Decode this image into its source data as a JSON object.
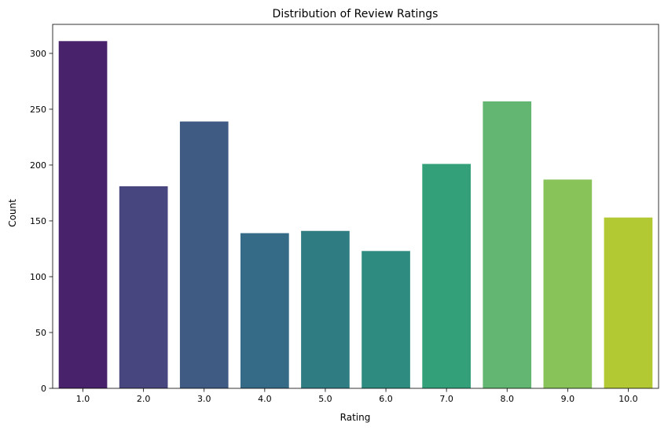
{
  "chart_data": {
    "type": "bar",
    "title": "Distribution of Review Ratings",
    "xlabel": "Rating",
    "ylabel": "Count",
    "categories": [
      "1.0",
      "2.0",
      "3.0",
      "4.0",
      "5.0",
      "6.0",
      "7.0",
      "8.0",
      "9.0",
      "10.0"
    ],
    "values": [
      311,
      181,
      239,
      139,
      141,
      123,
      201,
      257,
      187,
      153
    ],
    "colors": [
      "#48226b",
      "#47467f",
      "#3f5b83",
      "#366b87",
      "#2f7c83",
      "#2e8b7f",
      "#34a07a",
      "#62b672",
      "#88c359",
      "#b2c934"
    ],
    "ylim": [
      0,
      326
    ],
    "yticks": [
      0,
      50,
      100,
      150,
      200,
      250,
      300
    ],
    "grid": false,
    "legend": false
  }
}
